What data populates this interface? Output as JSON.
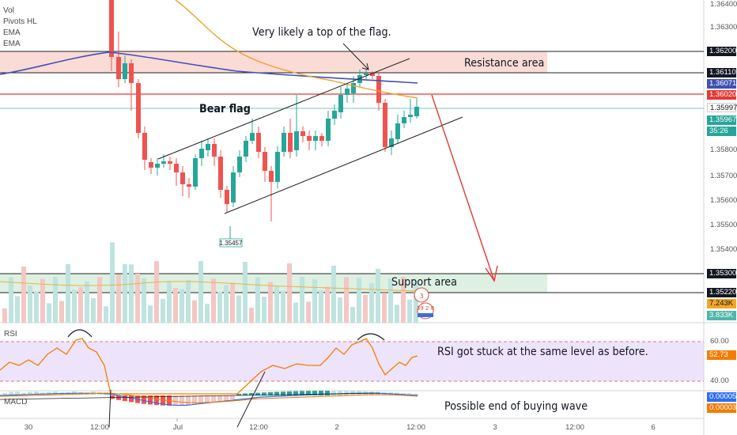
{
  "legend": {
    "vol": "Vol",
    "pivots": "Pivots HL",
    "ema1": "EMA",
    "ema2": "EMA"
  },
  "annotations": {
    "flag_top": "Very likely a top of the flag.",
    "resistance": "Resistance area",
    "bear_flag": "Bear flag",
    "support": "Support area",
    "rsi_note": "RSI got stuck at the same level as before.",
    "macd_note": "Possible end of buying wave"
  },
  "pivot_label": "1.35457",
  "panes": {
    "rsi": "RSI",
    "macd": "MACD"
  },
  "price_axis": {
    "ticks": [
      "1.36400",
      "1.36300",
      "1.35800",
      "1.35700",
      "1.35600",
      "1.35500",
      "1.35400"
    ],
    "badges": [
      {
        "text": "1.36200",
        "style": "dark"
      },
      {
        "text": "1.36110",
        "style": "dark"
      },
      {
        "text": "1.36071",
        "style": "blue"
      },
      {
        "text": "1.36020",
        "style": "red"
      },
      {
        "text": "1.35997",
        "style": "white"
      },
      {
        "text": "1.35967",
        "style": "green"
      },
      {
        "text": "35:26",
        "style": "green"
      },
      {
        "text": "1.35300",
        "style": "dark"
      },
      {
        "text": "1.35220",
        "style": "dark"
      },
      {
        "text": "7.243K",
        "style": "orange"
      },
      {
        "text": "3.833K",
        "style": "teal"
      }
    ]
  },
  "rsi_axis": {
    "ticks": [
      "60.00",
      "40.00"
    ],
    "badge": "52.73"
  },
  "macd_axis": {
    "badges": [
      "0.00005",
      "0.00003"
    ]
  },
  "time_axis": [
    "30",
    "12:00",
    "Jul",
    "12:00",
    "2",
    "12:00",
    "3",
    "12:00",
    "6"
  ],
  "colors": {
    "up": "#26a69a",
    "down": "#ef5350",
    "resistance": "#f9d9d4",
    "support": "#dcefe0",
    "rsi_band": "#ece3fb",
    "rsi_line": "#f57c00",
    "ema_blue": "#3f51b5",
    "ema_orange": "#f0a030"
  },
  "icons": [
    "calendar-flag-icon",
    "earnings-flag-icon"
  ],
  "event_text": [
    "3",
    "39",
    "2",
    "8"
  ]
}
